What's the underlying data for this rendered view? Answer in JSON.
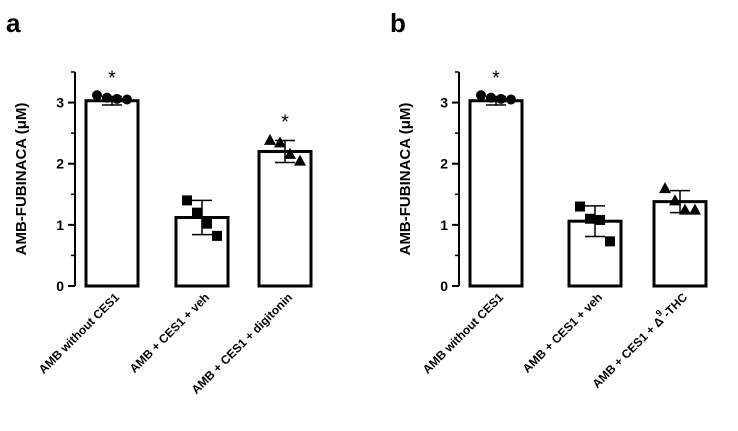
{
  "chart_data": [
    {
      "panel": "a",
      "type": "bar",
      "ylabel": "AMB-FUBINACA (μM)",
      "ylim": [
        0,
        3.5
      ],
      "yticks": [
        0,
        1,
        2,
        3
      ],
      "categories": [
        {
          "pre": "AMB without CES1",
          "sup": "",
          "post": ""
        },
        {
          "pre": "AMB + CES1 + veh",
          "sup": "",
          "post": ""
        },
        {
          "pre": "AMB + CES1 + digitonin",
          "sup": "",
          "post": ""
        }
      ],
      "values": [
        3.03,
        1.12,
        2.2
      ],
      "sd": [
        0.07,
        0.28,
        0.18
      ],
      "points": [
        [
          3.12,
          3.08,
          3.06,
          3.05
        ],
        [
          1.4,
          1.2,
          1.02,
          0.82
        ],
        [
          2.39,
          2.35,
          2.16,
          2.05
        ]
      ],
      "markers": [
        "circle",
        "square",
        "triangle"
      ],
      "significance": [
        "*",
        "",
        "*"
      ]
    },
    {
      "panel": "b",
      "type": "bar",
      "ylabel": "AMB-FUBINACA (μM)",
      "ylim": [
        0,
        3.5
      ],
      "yticks": [
        0,
        1,
        2,
        3
      ],
      "categories": [
        {
          "pre": "AMB without CES1",
          "sup": "",
          "post": ""
        },
        {
          "pre": "AMB + CES1 + veh",
          "sup": "",
          "post": ""
        },
        {
          "pre": "AMB + CES1 + Δ",
          "sup": "9",
          "post": "-THC"
        }
      ],
      "values": [
        3.03,
        1.06,
        1.38
      ],
      "sd": [
        0.07,
        0.25,
        0.18
      ],
      "points": [
        [
          3.12,
          3.08,
          3.06,
          3.05
        ],
        [
          1.3,
          1.1,
          1.08,
          0.73
        ],
        [
          1.6,
          1.4,
          1.25,
          1.25
        ]
      ],
      "markers": [
        "circle",
        "square",
        "triangle"
      ],
      "significance": [
        "*",
        "",
        ""
      ]
    }
  ]
}
